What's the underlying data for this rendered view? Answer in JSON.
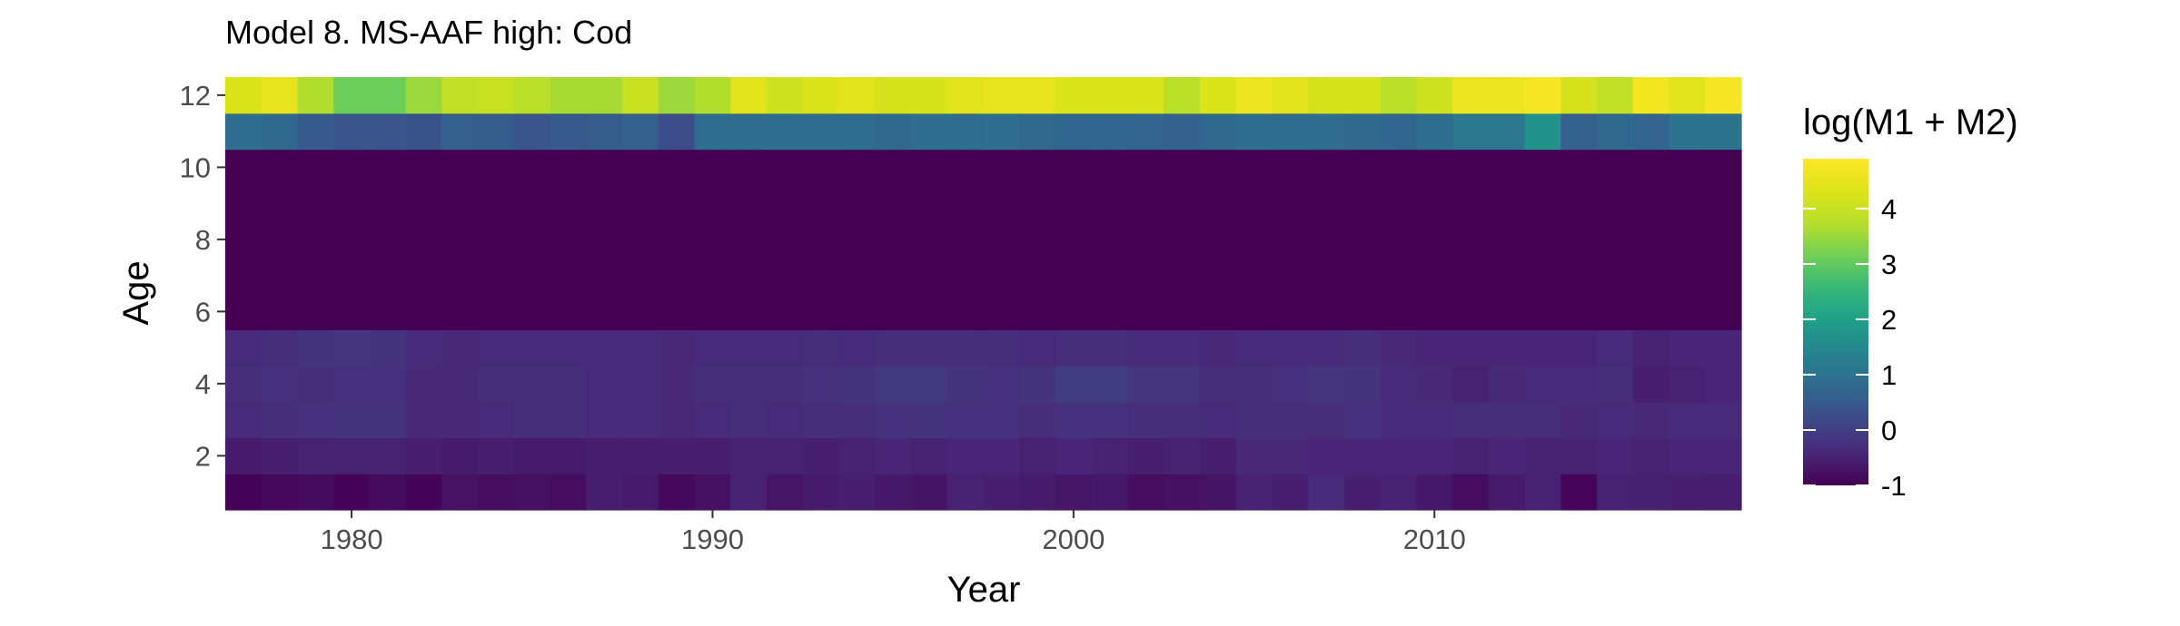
{
  "chart_data": {
    "type": "heatmap",
    "title": "Model 8. MS-AAF high: Cod",
    "xlabel": "Year",
    "ylabel": "Age",
    "legend_title": "log(M1 + M2)",
    "legend_position": "right",
    "grid": false,
    "x_range": [
      1977,
      2018
    ],
    "y_range": [
      1,
      12
    ],
    "color_range": [
      -1,
      4.9
    ],
    "colormap": "viridis",
    "x_ticks": [
      1980,
      1990,
      2000,
      2010
    ],
    "y_ticks": [
      2,
      4,
      6,
      8,
      10,
      12
    ],
    "legend_ticks": [
      -1,
      0,
      1,
      2,
      3,
      4
    ],
    "years": [
      1977,
      1978,
      1979,
      1980,
      1981,
      1982,
      1983,
      1984,
      1985,
      1986,
      1987,
      1988,
      1989,
      1990,
      1991,
      1992,
      1993,
      1994,
      1995,
      1996,
      1997,
      1998,
      1999,
      2000,
      2001,
      2002,
      2003,
      2004,
      2005,
      2006,
      2007,
      2008,
      2009,
      2010,
      2011,
      2012,
      2013,
      2014,
      2015,
      2016,
      2017,
      2018
    ],
    "ages": [
      1,
      2,
      3,
      4,
      5,
      6,
      7,
      8,
      9,
      10,
      11,
      12
    ],
    "values": {
      "1": [
        -0.95,
        -0.9,
        -0.85,
        -0.95,
        -0.85,
        -0.95,
        -0.75,
        -0.8,
        -0.78,
        -0.82,
        -0.55,
        -0.6,
        -0.88,
        -0.78,
        -0.5,
        -0.7,
        -0.6,
        -0.55,
        -0.65,
        -0.72,
        -0.5,
        -0.55,
        -0.6,
        -0.7,
        -0.65,
        -0.8,
        -0.78,
        -0.72,
        -0.5,
        -0.55,
        -0.35,
        -0.55,
        -0.5,
        -0.65,
        -0.82,
        -0.6,
        -0.5,
        -0.92,
        -0.5,
        -0.52,
        -0.55,
        -0.58
      ],
      "2": [
        -0.6,
        -0.55,
        -0.5,
        -0.5,
        -0.5,
        -0.55,
        -0.6,
        -0.55,
        -0.6,
        -0.6,
        -0.55,
        -0.55,
        -0.55,
        -0.55,
        -0.5,
        -0.5,
        -0.55,
        -0.5,
        -0.45,
        -0.5,
        -0.45,
        -0.45,
        -0.5,
        -0.45,
        -0.5,
        -0.55,
        -0.5,
        -0.55,
        -0.4,
        -0.4,
        -0.45,
        -0.45,
        -0.45,
        -0.45,
        -0.5,
        -0.45,
        -0.5,
        -0.5,
        -0.45,
        -0.5,
        -0.45,
        -0.45
      ],
      "3": [
        -0.35,
        -0.3,
        -0.25,
        -0.2,
        -0.2,
        -0.4,
        -0.4,
        -0.35,
        -0.3,
        -0.3,
        -0.35,
        -0.35,
        -0.4,
        -0.35,
        -0.3,
        -0.35,
        -0.3,
        -0.3,
        -0.25,
        -0.2,
        -0.25,
        -0.25,
        -0.3,
        -0.25,
        -0.25,
        -0.3,
        -0.3,
        -0.35,
        -0.3,
        -0.3,
        -0.3,
        -0.25,
        -0.35,
        -0.35,
        -0.3,
        -0.3,
        -0.3,
        -0.4,
        -0.35,
        -0.4,
        -0.35,
        -0.35
      ],
      "4": [
        -0.3,
        -0.25,
        -0.3,
        -0.25,
        -0.25,
        -0.4,
        -0.4,
        -0.3,
        -0.3,
        -0.3,
        -0.35,
        -0.35,
        -0.4,
        -0.3,
        -0.3,
        -0.3,
        -0.25,
        -0.2,
        -0.1,
        -0.1,
        -0.2,
        -0.25,
        -0.2,
        -0.05,
        -0.05,
        -0.15,
        -0.15,
        -0.3,
        -0.3,
        -0.25,
        -0.15,
        -0.2,
        -0.35,
        -0.4,
        -0.5,
        -0.4,
        -0.35,
        -0.35,
        -0.3,
        -0.55,
        -0.5,
        -0.45
      ],
      "5": [
        -0.35,
        -0.3,
        -0.2,
        -0.15,
        -0.2,
        -0.35,
        -0.4,
        -0.35,
        -0.35,
        -0.35,
        -0.35,
        -0.35,
        -0.4,
        -0.35,
        -0.35,
        -0.35,
        -0.3,
        -0.35,
        -0.3,
        -0.3,
        -0.3,
        -0.3,
        -0.35,
        -0.3,
        -0.3,
        -0.35,
        -0.35,
        -0.4,
        -0.35,
        -0.35,
        -0.35,
        -0.3,
        -0.4,
        -0.45,
        -0.45,
        -0.45,
        -0.45,
        -0.45,
        -0.35,
        -0.5,
        -0.45,
        -0.45
      ],
      "6": [
        -1,
        -1,
        -1,
        -1,
        -1,
        -1,
        -1,
        -1,
        -1,
        -1,
        -1,
        -1,
        -1,
        -1,
        -1,
        -1,
        -1,
        -1,
        -1,
        -1,
        -1,
        -1,
        -1,
        -1,
        -1,
        -1,
        -1,
        -1,
        -1,
        -1,
        -1,
        -1,
        -1,
        -1,
        -1,
        -1,
        -1,
        -1,
        -1,
        -1,
        -1,
        -1
      ],
      "7": [
        -1,
        -1,
        -1,
        -1,
        -1,
        -1,
        -1,
        -1,
        -1,
        -1,
        -1,
        -1,
        -1,
        -1,
        -1,
        -1,
        -1,
        -1,
        -1,
        -1,
        -1,
        -1,
        -1,
        -1,
        -1,
        -1,
        -1,
        -1,
        -1,
        -1,
        -1,
        -1,
        -1,
        -1,
        -1,
        -1,
        -1,
        -1,
        -1,
        -1,
        -1,
        -1
      ],
      "8": [
        -1,
        -1,
        -1,
        -1,
        -1,
        -1,
        -1,
        -1,
        -1,
        -1,
        -1,
        -1,
        -1,
        -1,
        -1,
        -1,
        -1,
        -1,
        -1,
        -1,
        -1,
        -1,
        -1,
        -1,
        -1,
        -1,
        -1,
        -1,
        -1,
        -1,
        -1,
        -1,
        -1,
        -1,
        -1,
        -1,
        -1,
        -1,
        -1,
        -1,
        -1,
        -1
      ],
      "9": [
        -1,
        -1,
        -1,
        -1,
        -1,
        -1,
        -1,
        -1,
        -1,
        -1,
        -1,
        -1,
        -1,
        -1,
        -1,
        -1,
        -1,
        -1,
        -1,
        -1,
        -1,
        -1,
        -1,
        -1,
        -1,
        -1,
        -1,
        -1,
        -1,
        -1,
        -1,
        -1,
        -1,
        -1,
        -1,
        -1,
        -1,
        -1,
        -1,
        -1,
        -1,
        -1
      ],
      "10": [
        -1,
        -1,
        -1,
        -1,
        -1,
        -1,
        -1,
        -1,
        -1,
        -1,
        -1,
        -1,
        -1,
        -1,
        -1,
        -1,
        -1,
        -1,
        -1,
        -1,
        -1,
        -1,
        -1,
        -1,
        -1,
        -1,
        -1,
        -1,
        -1,
        -1,
        -1,
        -1,
        -1,
        -1,
        -1,
        -1,
        -1,
        -1,
        -1,
        -1,
        -1,
        -1
      ],
      "11": [
        0.9,
        0.8,
        0.5,
        0.4,
        0.4,
        0.35,
        0.6,
        0.55,
        0.4,
        0.5,
        0.55,
        0.6,
        0.25,
        0.85,
        0.85,
        0.9,
        0.9,
        0.85,
        0.8,
        0.85,
        0.85,
        0.9,
        0.8,
        0.75,
        0.75,
        0.7,
        0.65,
        0.8,
        0.9,
        0.85,
        0.85,
        0.8,
        0.75,
        0.85,
        1.1,
        1.1,
        1.7,
        0.6,
        0.8,
        0.7,
        1.0,
        1.05
      ],
      "12": [
        4.3,
        4.5,
        3.7,
        3.1,
        3.1,
        3.5,
        3.9,
        4.0,
        3.8,
        3.6,
        3.6,
        4.0,
        3.5,
        3.7,
        4.4,
        4.1,
        4.3,
        4.4,
        4.2,
        4.2,
        4.4,
        4.5,
        4.5,
        4.3,
        4.3,
        4.3,
        3.8,
        4.3,
        4.6,
        4.4,
        4.2,
        4.2,
        3.8,
        4.1,
        4.6,
        4.6,
        4.8,
        4.2,
        3.9,
        4.7,
        4.4,
        4.8
      ]
    }
  }
}
